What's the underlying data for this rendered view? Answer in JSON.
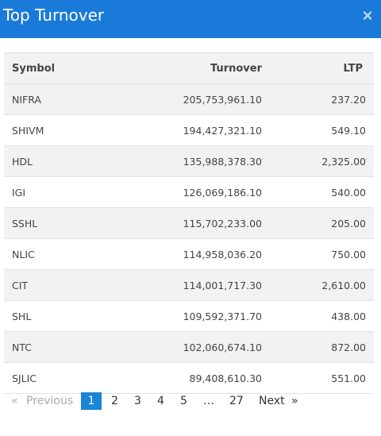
{
  "modal": {
    "title": "Top Turnover",
    "close_icon": "×"
  },
  "table": {
    "columns": [
      "Symbol",
      "Turnover",
      "LTP"
    ],
    "rows": [
      {
        "symbol": "NIFRA",
        "turnover": "205,753,961.10",
        "ltp": "237.20"
      },
      {
        "symbol": "SHIVM",
        "turnover": "194,427,321.10",
        "ltp": "549.10"
      },
      {
        "symbol": "HDL",
        "turnover": "135,988,378.30",
        "ltp": "2,325.00"
      },
      {
        "symbol": "IGI",
        "turnover": "126,069,186.10",
        "ltp": "540.00"
      },
      {
        "symbol": "SSHL",
        "turnover": "115,702,233.00",
        "ltp": "205.00"
      },
      {
        "symbol": "NLIC",
        "turnover": "114,958,036.20",
        "ltp": "750.00"
      },
      {
        "symbol": "CIT",
        "turnover": "114,001,717.30",
        "ltp": "2,610.00"
      },
      {
        "symbol": "SHL",
        "turnover": "109,592,371.70",
        "ltp": "438.00"
      },
      {
        "symbol": "NTC",
        "turnover": "102,060,674.10",
        "ltp": "872.00"
      },
      {
        "symbol": "SJLIC",
        "turnover": "89,408,610.30",
        "ltp": "551.00"
      }
    ]
  },
  "pagination": {
    "prev_icon": "«",
    "prev_label": "Previous",
    "pages": [
      "1",
      "2",
      "3",
      "4",
      "5"
    ],
    "ellipsis": "…",
    "last_page": "27",
    "next_label": "Next",
    "next_icon": "»",
    "current": "1"
  },
  "colors": {
    "header_bg": "#1a7ad9",
    "active_page": "#1a84d6"
  }
}
